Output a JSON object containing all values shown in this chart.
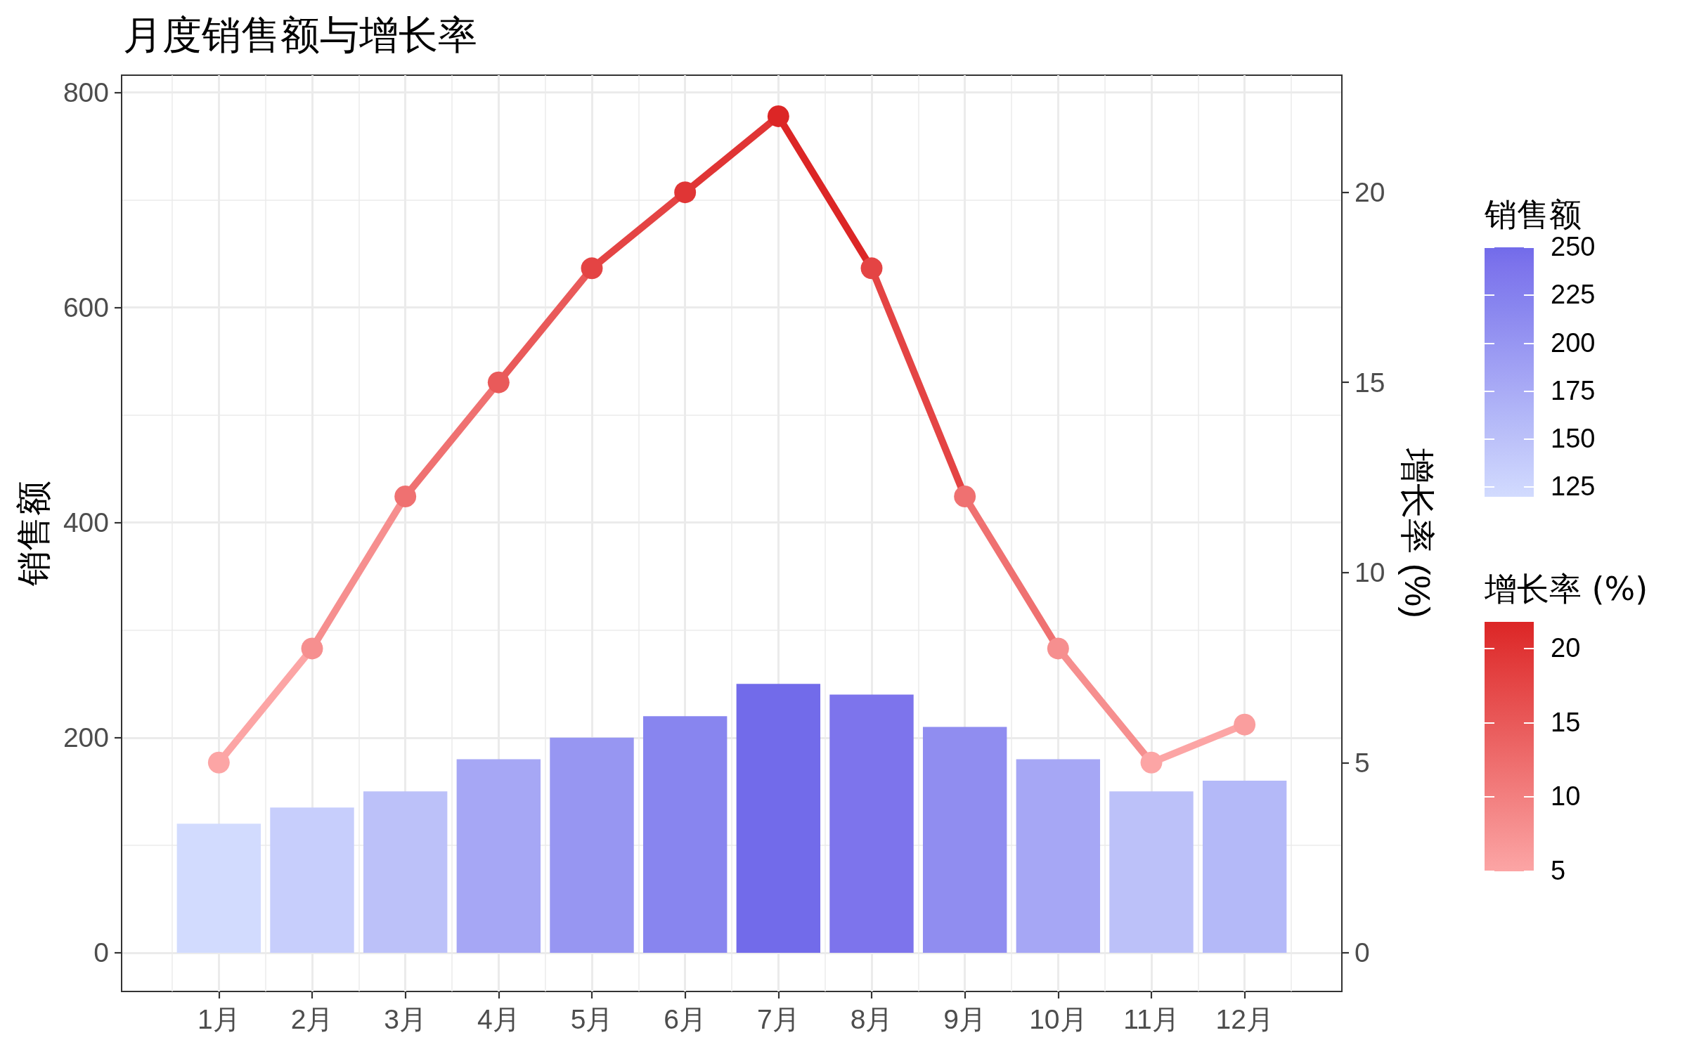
{
  "chart_data": {
    "type": "bar",
    "title": "月度销售额与增长率",
    "ylabel": "销售额",
    "y2label": "增长率 (%)",
    "categories": [
      "1月",
      "2月",
      "3月",
      "4月",
      "5月",
      "6月",
      "7月",
      "8月",
      "9月",
      "10月",
      "11月",
      "12月"
    ],
    "series": [
      {
        "values": [
          120,
          135,
          150,
          180,
          200,
          220,
          250,
          240,
          210,
          180,
          150,
          160
        ],
        "colors": [
          "#d2dbfe",
          "#c7cefc",
          "#bcc1f9",
          "#a6a7f5",
          "#9796f2",
          "#8885ef",
          "#726bea",
          "#7d74ec",
          "#908df0",
          "#a6a7f5",
          "#bcc1f9",
          "#b4b9f8"
        ]
      },
      {
        "type": "line",
        "axis": "y2",
        "values": [
          5,
          8,
          12,
          15,
          18,
          20,
          22,
          18,
          12,
          8,
          5,
          6
        ],
        "colors": [
          "#fca5a5",
          "#f68f8f",
          "#ef7171",
          "#e95a5a",
          "#e44444",
          "#e03535",
          "#dc2626",
          "#e44444",
          "#ef7171",
          "#f68f8f",
          "#fca5a5",
          "#fa9e9e"
        ]
      }
    ],
    "clabel": "销售额",
    "clim": [
      120,
      250
    ],
    "cticks": [
      125,
      150,
      175,
      200,
      225,
      250
    ],
    "legend_title": "增长率 (%)",
    "annotations": [
      "5",
      "10",
      "15",
      "20"
    ],
    "ylim": [
      -36,
      816
    ],
    "yticks": [
      0,
      200,
      400,
      600,
      800
    ],
    "y2lim": [
      -1.02,
      23.08
    ],
    "y2ticks": [
      0,
      5,
      10,
      15,
      20
    ],
    "grid": true,
    "marker": "circle",
    "line_style": "solid"
  }
}
